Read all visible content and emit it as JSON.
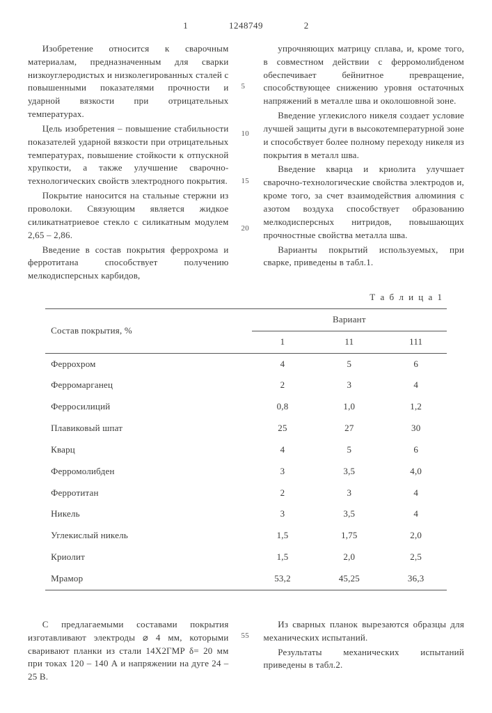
{
  "header": {
    "page_left": "1",
    "docnum": "1248749",
    "page_right": "2"
  },
  "left_paragraphs": [
    "Изобретение относится к сварочным материалам, предназначенным для сварки низкоуглеродистых и низколегированных сталей с повышенными показателями прочности и ударной вязкости при отрицательных температурах.",
    "Цель изобретения – повышение стабильности показателей ударной вязкости при отрицательных температурах, повышение стойкости к отпускной хрупкости, а также улучшение сварочно-технологических свойств электродного покрытия.",
    "Покрытие наносится на стальные стержни из проволоки. Связующим является жидкое силикатнатриевое стекло с силикатным модулем 2,65 – 2,86.",
    "Введение в состав покрытия феррохрома и ферротитана способствует получению мелкодисперсных карбидов,"
  ],
  "right_paragraphs": [
    "упрочняющих матрицу сплава, и, кроме того, в совместном действии с ферромолибденом обеспечивает бейнитное превращение, способствующее снижению уровня остаточных напряжений в металле шва и околошовной зоне.",
    "Введение углекислого никеля создает условие лучшей защиты дуги в высокотемпературной зоне и способствует более полному переходу никеля из покрытия в металл шва.",
    "Введение кварца и криолита улучшает сварочно-технологические свойства электродов и, кроме того, за счет взаимодействия алюминия с азотом воздуха способствует образованию мелкодисперсных нитридов, повышающих прочностные свойства металла шва.",
    "Варианты покрытий используемых, при сварке, приведены в табл.1."
  ],
  "linemarks": {
    "m5": "5",
    "m10": "10",
    "m15": "15",
    "m20": "20"
  },
  "table": {
    "caption": "Т а б л и ц а 1",
    "row_header": "Состав покрытия, %",
    "variant_header": "Вариант",
    "col1": "1",
    "col2": "11",
    "col3": "111",
    "rows": [
      {
        "name": "Феррохром",
        "v1": "4",
        "v2": "5",
        "v3": "6"
      },
      {
        "name": "Ферромарганец",
        "v1": "2",
        "v2": "3",
        "v3": "4"
      },
      {
        "name": "Ферросилиций",
        "v1": "0,8",
        "v2": "1,0",
        "v3": "1,2"
      },
      {
        "name": "Плавиковый шпат",
        "v1": "25",
        "v2": "27",
        "v3": "30"
      },
      {
        "name": "Кварц",
        "v1": "4",
        "v2": "5",
        "v3": "6"
      },
      {
        "name": "Ферромолибден",
        "v1": "3",
        "v2": "3,5",
        "v3": "4,0"
      },
      {
        "name": "Ферротитан",
        "v1": "2",
        "v2": "3",
        "v3": "4"
      },
      {
        "name": "Никель",
        "v1": "3",
        "v2": "3,5",
        "v3": "4"
      },
      {
        "name": "Углекислый никель",
        "v1": "1,5",
        "v2": "1,75",
        "v3": "2,0"
      },
      {
        "name": "Криолит",
        "v1": "1,5",
        "v2": "2,0",
        "v3": "2,5"
      },
      {
        "name": "Мрамор",
        "v1": "53,2",
        "v2": "45,25",
        "v3": "36,3"
      }
    ]
  },
  "lower_left": [
    "С предлагаемыми составами покрытия изготавливают электроды ⌀ 4 мм, которыми сваривают планки из стали 14Х2ГМР δ= 20 мм при токах 120 – 140 А и напряжении на дуге 24 – 25 В."
  ],
  "lower_right": [
    "Из сварных планок вырезаются образцы для механических испытаний.",
    "Результаты механических испытаний приведены в табл.2."
  ],
  "lower_mark": "55"
}
